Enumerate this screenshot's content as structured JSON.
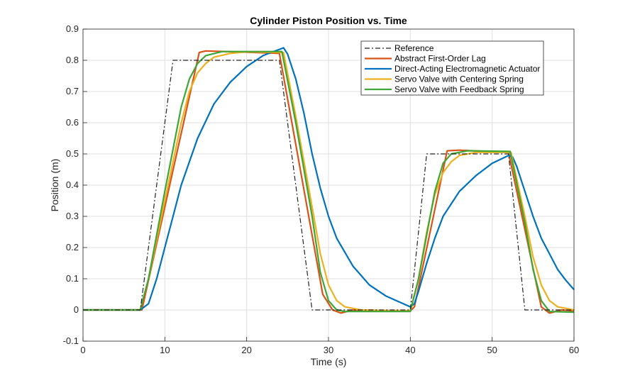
{
  "chart_data": {
    "type": "line",
    "title": "Cylinder Piston Position vs. Time",
    "xlabel": "Time (s)",
    "ylabel": "Position (m)",
    "xlim": [
      0,
      60
    ],
    "ylim": [
      -0.1,
      0.9
    ],
    "xticks": [
      0,
      10,
      20,
      30,
      40,
      50,
      60
    ],
    "yticks": [
      -0.1,
      0,
      0.1,
      0.2,
      0.3,
      0.4,
      0.5,
      0.6,
      0.7,
      0.8,
      0.9
    ],
    "grid": true,
    "legend_position": "top-right",
    "series": [
      {
        "name": "Reference",
        "color": "#222222",
        "dash": "dashdot",
        "points": [
          [
            0,
            0
          ],
          [
            7,
            0
          ],
          [
            11,
            0.8
          ],
          [
            24,
            0.8
          ],
          [
            28,
            0
          ],
          [
            40,
            0
          ],
          [
            42,
            0.5
          ],
          [
            52,
            0.5
          ],
          [
            54,
            0
          ],
          [
            60,
            0
          ]
        ]
      },
      {
        "name": "Abstract First-Order Lag",
        "color": "#D95319",
        "dash": "solid",
        "points": [
          [
            0,
            0
          ],
          [
            7.2,
            0
          ],
          [
            14.2,
            0.825
          ],
          [
            15,
            0.83
          ],
          [
            20,
            0.826
          ],
          [
            24,
            0.822
          ],
          [
            29.3,
            0.05
          ],
          [
            30.5,
            0.0
          ],
          [
            31.5,
            -0.01
          ],
          [
            33,
            0
          ],
          [
            40,
            -0.003
          ],
          [
            40.5,
            0.01
          ],
          [
            44.5,
            0.51
          ],
          [
            46,
            0.512
          ],
          [
            52,
            0.505
          ],
          [
            56,
            0.01
          ],
          [
            57,
            -0.01
          ],
          [
            58.5,
            0
          ],
          [
            60,
            -0.003
          ]
        ]
      },
      {
        "name": "Direct-Acting Electromagnetic Actuator",
        "color": "#0072BD",
        "dash": "solid",
        "points": [
          [
            0,
            0
          ],
          [
            7,
            0
          ],
          [
            8,
            0.02
          ],
          [
            9,
            0.1
          ],
          [
            10,
            0.2
          ],
          [
            11,
            0.3
          ],
          [
            12,
            0.4
          ],
          [
            14,
            0.55
          ],
          [
            16,
            0.66
          ],
          [
            18,
            0.73
          ],
          [
            20,
            0.78
          ],
          [
            22,
            0.815
          ],
          [
            24,
            0.835
          ],
          [
            24.5,
            0.84
          ],
          [
            25,
            0.82
          ],
          [
            26,
            0.74
          ],
          [
            27,
            0.63
          ],
          [
            28,
            0.5
          ],
          [
            29,
            0.39
          ],
          [
            30,
            0.3
          ],
          [
            31,
            0.23
          ],
          [
            33,
            0.14
          ],
          [
            35,
            0.08
          ],
          [
            37,
            0.045
          ],
          [
            40,
            0.01
          ],
          [
            40.5,
            0.02
          ],
          [
            41,
            0.06
          ],
          [
            42,
            0.15
          ],
          [
            43,
            0.23
          ],
          [
            44,
            0.3
          ],
          [
            46,
            0.38
          ],
          [
            48,
            0.43
          ],
          [
            50,
            0.47
          ],
          [
            52,
            0.495
          ],
          [
            52.5,
            0.49
          ],
          [
            53,
            0.46
          ],
          [
            54,
            0.38
          ],
          [
            55,
            0.3
          ],
          [
            56,
            0.23
          ],
          [
            57,
            0.18
          ],
          [
            58,
            0.13
          ],
          [
            59,
            0.095
          ],
          [
            60,
            0.065
          ]
        ]
      },
      {
        "name": "Servo Valve with Centering Spring",
        "color": "#EDB120",
        "dash": "solid",
        "points": [
          [
            0,
            0
          ],
          [
            7,
            0
          ],
          [
            8,
            0.1
          ],
          [
            10,
            0.35
          ],
          [
            12,
            0.6
          ],
          [
            13,
            0.7
          ],
          [
            14,
            0.76
          ],
          [
            15,
            0.79
          ],
          [
            16,
            0.81
          ],
          [
            18,
            0.822
          ],
          [
            20,
            0.827
          ],
          [
            24.5,
            0.825
          ],
          [
            26,
            0.62
          ],
          [
            28,
            0.33
          ],
          [
            29,
            0.18
          ],
          [
            30,
            0.08
          ],
          [
            31,
            0.03
          ],
          [
            32,
            0.01
          ],
          [
            34,
            0
          ],
          [
            40,
            -0.003
          ],
          [
            41,
            0.1
          ],
          [
            42,
            0.25
          ],
          [
            43,
            0.37
          ],
          [
            44,
            0.44
          ],
          [
            45,
            0.475
          ],
          [
            46,
            0.495
          ],
          [
            48,
            0.505
          ],
          [
            52.3,
            0.505
          ],
          [
            54,
            0.3
          ],
          [
            55,
            0.17
          ],
          [
            56,
            0.08
          ],
          [
            57,
            0.03
          ],
          [
            58,
            0.01
          ],
          [
            60,
            0
          ]
        ]
      },
      {
        "name": "Servo Valve with Feedback Spring",
        "color": "#3FA535",
        "dash": "solid",
        "points": [
          [
            0,
            0
          ],
          [
            7,
            0
          ],
          [
            8,
            0.1
          ],
          [
            10,
            0.38
          ],
          [
            12,
            0.65
          ],
          [
            13,
            0.74
          ],
          [
            14,
            0.79
          ],
          [
            15,
            0.815
          ],
          [
            17,
            0.828
          ],
          [
            24.3,
            0.828
          ],
          [
            26,
            0.6
          ],
          [
            28,
            0.3
          ],
          [
            29,
            0.12
          ],
          [
            30,
            0.03
          ],
          [
            31,
            0
          ],
          [
            32,
            -0.005
          ],
          [
            40,
            -0.005
          ],
          [
            41,
            0.1
          ],
          [
            43,
            0.38
          ],
          [
            44,
            0.47
          ],
          [
            45,
            0.5
          ],
          [
            47,
            0.51
          ],
          [
            52.2,
            0.508
          ],
          [
            54,
            0.28
          ],
          [
            55,
            0.13
          ],
          [
            56,
            0.03
          ],
          [
            57,
            -0.005
          ],
          [
            60,
            -0.007
          ]
        ]
      }
    ]
  }
}
